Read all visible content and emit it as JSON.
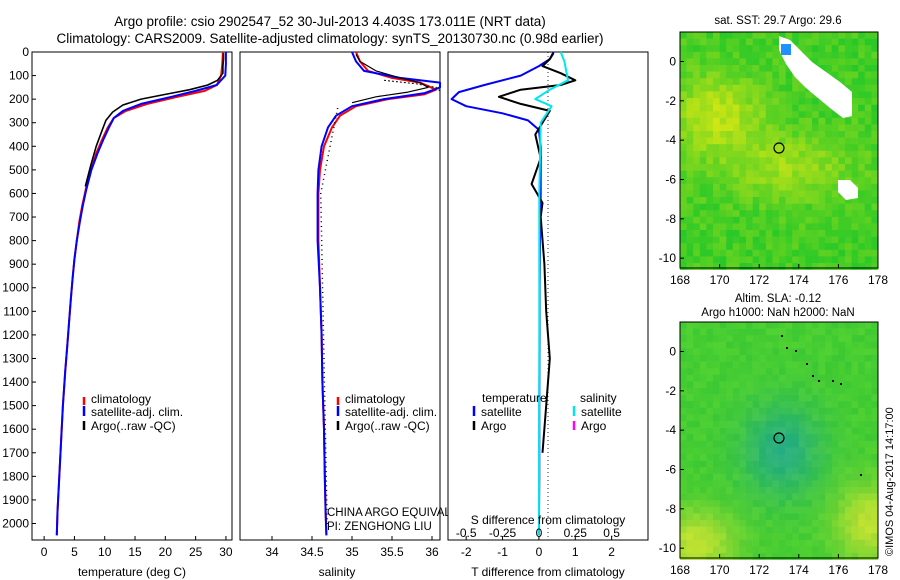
{
  "header": {
    "title_line1": "Argo profile: csio 2902547_52 30-Jul-2013 4.403S 173.011E (NRT data)",
    "title_line2": "Climatology: CARS2009. Satellite-adjusted climatology: synTS_20130730.nc (0.98d earlier)"
  },
  "colors": {
    "climatology": "#ff0000",
    "satellite": "#0000ff",
    "argo": "#000000",
    "s_satellite": "#00e5ee",
    "s_argo": "#ff00ff"
  },
  "chart_data": [
    {
      "type": "line",
      "name": "temperature-profile",
      "xlabel": "temperature (deg C)",
      "ylabel": "",
      "xlim": [
        -2,
        31
      ],
      "ylim": [
        2070,
        0
      ],
      "xticks": [
        0,
        5,
        10,
        15,
        20,
        25,
        30
      ],
      "yticks": [
        0,
        100,
        200,
        300,
        400,
        500,
        600,
        700,
        800,
        900,
        1000,
        1100,
        1200,
        1300,
        1400,
        1500,
        1600,
        1700,
        1800,
        1900,
        2000
      ],
      "legend": [
        "climatology",
        "satellite-adj. clim.",
        "Argo(..raw -QC)"
      ],
      "series": [
        {
          "name": "climatology",
          "x": [
            29.5,
            29.4,
            29.2,
            28.5,
            26.5,
            22,
            17,
            13.5,
            11.5,
            10.5,
            9.6,
            8.6,
            7.7,
            6.9,
            6.3,
            5.8,
            5.4,
            5,
            4.7,
            4.4,
            4.1,
            3.8,
            3.5,
            3.1,
            2.8,
            2.5,
            2.2,
            2.1
          ],
          "y": [
            0,
            50,
            100,
            140,
            165,
            190,
            220,
            250,
            280,
            320,
            370,
            430,
            500,
            580,
            650,
            720,
            800,
            880,
            960,
            1050,
            1150,
            1250,
            1350,
            1500,
            1650,
            1800,
            1950,
            2050
          ]
        },
        {
          "name": "satellite-adj. clim.",
          "x": [
            30,
            30,
            29.9,
            28.5,
            25,
            21,
            16,
            13,
            11.5,
            10.7,
            9.8,
            8.8,
            7.8,
            7,
            6.4,
            5.9,
            5.4,
            5,
            4.7,
            4.4,
            4.1,
            3.8,
            3.5,
            3.1,
            2.8,
            2.5,
            2.2,
            2.1
          ],
          "y": [
            0,
            50,
            100,
            140,
            165,
            190,
            220,
            250,
            280,
            320,
            370,
            430,
            500,
            580,
            650,
            720,
            800,
            880,
            960,
            1050,
            1150,
            1250,
            1350,
            1500,
            1650,
            1800,
            1950,
            2050
          ]
        },
        {
          "name": "Argo",
          "x": [
            29.6,
            29.6,
            29.5,
            29.5,
            28.6,
            27,
            24,
            20,
            16,
            13,
            11.3,
            10.2,
            9.6,
            8.6,
            7.7,
            6.8
          ],
          "y": [
            5,
            30,
            60,
            90,
            120,
            140,
            160,
            180,
            200,
            225,
            255,
            290,
            330,
            400,
            480,
            570
          ]
        }
      ]
    },
    {
      "type": "line",
      "name": "salinity-profile",
      "xlabel": "salinity",
      "xlim": [
        33.6,
        36.1
      ],
      "ylim": [
        2070,
        0
      ],
      "xticks": [
        34,
        34.5,
        35,
        35.5,
        36
      ],
      "legend": [
        "climatology",
        "satellite-adj. clim.",
        "Argo(..raw -QC)"
      ],
      "series": [
        {
          "name": "climatology",
          "x": [
            35.05,
            35.1,
            35.2,
            35.5,
            35.85,
            36.05,
            35.9,
            35.45,
            35.05,
            34.85,
            34.75,
            34.65,
            34.6,
            34.58,
            34.58,
            34.58,
            34.6,
            34.62,
            34.63,
            34.65,
            34.66,
            34.67,
            34.68
          ],
          "y": [
            0,
            40,
            80,
            110,
            130,
            160,
            180,
            200,
            230,
            270,
            320,
            400,
            500,
            600,
            700,
            800,
            1000,
            1200,
            1400,
            1600,
            1800,
            1950,
            2050
          ]
        },
        {
          "name": "satellite-adj. clim.",
          "x": [
            35.0,
            35.05,
            35.15,
            35.6,
            36.1,
            36.1,
            35.9,
            35.4,
            35.0,
            34.8,
            34.7,
            34.62,
            34.58,
            34.57,
            34.57,
            34.57,
            34.6,
            34.62,
            34.63,
            34.65,
            34.66,
            34.67,
            34.68
          ],
          "y": [
            0,
            40,
            80,
            110,
            130,
            150,
            175,
            200,
            230,
            270,
            320,
            400,
            500,
            600,
            700,
            800,
            1000,
            1200,
            1400,
            1600,
            1800,
            1950,
            2050
          ]
        },
        {
          "name": "Argo",
          "x": [
            35.05,
            35.1,
            35.3,
            35.6,
            35.85,
            35.95,
            35.7,
            35.3,
            35.0
          ],
          "y": [
            10,
            40,
            80,
            110,
            130,
            150,
            170,
            190,
            215
          ]
        }
      ],
      "annotation": [
        "CHINA ARGO EQUIVALENT",
        "PI: ZENGHONG LIU"
      ]
    },
    {
      "type": "line",
      "name": "difference-profile",
      "xlabel": "T difference from climatology",
      "xlabel_top": "S difference from climatology",
      "xlim": [
        -2.5,
        3
      ],
      "xticks": [
        -2,
        -1,
        0,
        1,
        2
      ],
      "xtick_labels": [
        "-2",
        "-1",
        "0",
        "1",
        "2"
      ],
      "xticks_top": [
        -0.5,
        -0.25,
        0,
        0.25,
        0.5
      ],
      "legend_temperature_title": "temperature",
      "legend_salinity_title": "salinity",
      "legend_temperature": [
        "satellite",
        "Argo"
      ],
      "legend_salinity": [
        "satellite",
        "Argo"
      ],
      "series": [
        {
          "name": "T satellite",
          "x": [
            0.4,
            0.3,
            0,
            -0.5,
            -1.5,
            -2.2,
            -2.4,
            -2.0,
            -1.0,
            -0.3,
            0,
            0.05,
            0.05,
            0.03,
            0.02,
            0.02,
            0.01,
            0.01,
            0
          ],
          "y": [
            0,
            30,
            60,
            100,
            140,
            170,
            200,
            230,
            260,
            290,
            330,
            400,
            600,
            800,
            1000,
            1200,
            1500,
            1800,
            2050
          ]
        },
        {
          "name": "T Argo",
          "x": [
            0.4,
            0.3,
            0.1,
            0.6,
            1.0,
            0.6,
            -0.5,
            -1.1,
            -0.5,
            0.3,
            0.1,
            -0.1,
            0.05,
            -0.2,
            0.1,
            0.05,
            0.15,
            0.2,
            0.3,
            0.2,
            0.1
          ],
          "y": [
            5,
            30,
            60,
            90,
            120,
            140,
            160,
            190,
            220,
            250,
            300,
            350,
            450,
            560,
            640,
            700,
            900,
            1100,
            1300,
            1500,
            1700
          ]
        },
        {
          "name": "S satellite",
          "x": [
            0.6,
            0.7,
            0.8,
            0.3,
            -0.1,
            0.35,
            0.05,
            0.01,
            0.01,
            0.0
          ],
          "y": [
            0,
            40,
            120,
            160,
            200,
            230,
            300,
            600,
            1200,
            2050
          ]
        }
      ]
    },
    {
      "type": "heatmap",
      "name": "sst-map",
      "title": "sat. SST: 29.7 Argo: 29.6",
      "xlim": [
        168,
        178
      ],
      "ylim": [
        -10.5,
        1.5
      ],
      "xticks": [
        168,
        170,
        172,
        174,
        176,
        178
      ],
      "yticks": [
        0,
        -2,
        -4,
        -6,
        -8,
        -10
      ],
      "argo_marker": {
        "lon": 173.0,
        "lat": -4.4
      }
    },
    {
      "type": "heatmap",
      "name": "sla-map",
      "title_line1": "Altim. SLA: -0.12",
      "title_line2": "Argo h1000: NaN h2000: NaN",
      "xlim": [
        168,
        178
      ],
      "ylim": [
        -10.5,
        1.5
      ],
      "xticks": [
        168,
        170,
        172,
        174,
        176,
        178
      ],
      "yticks": [
        0,
        -2,
        -4,
        -6,
        -8,
        -10
      ],
      "argo_marker": {
        "lon": 173.0,
        "lat": -4.4
      }
    }
  ],
  "credit": "©IMOS 04-Aug-2017 14:17:00"
}
